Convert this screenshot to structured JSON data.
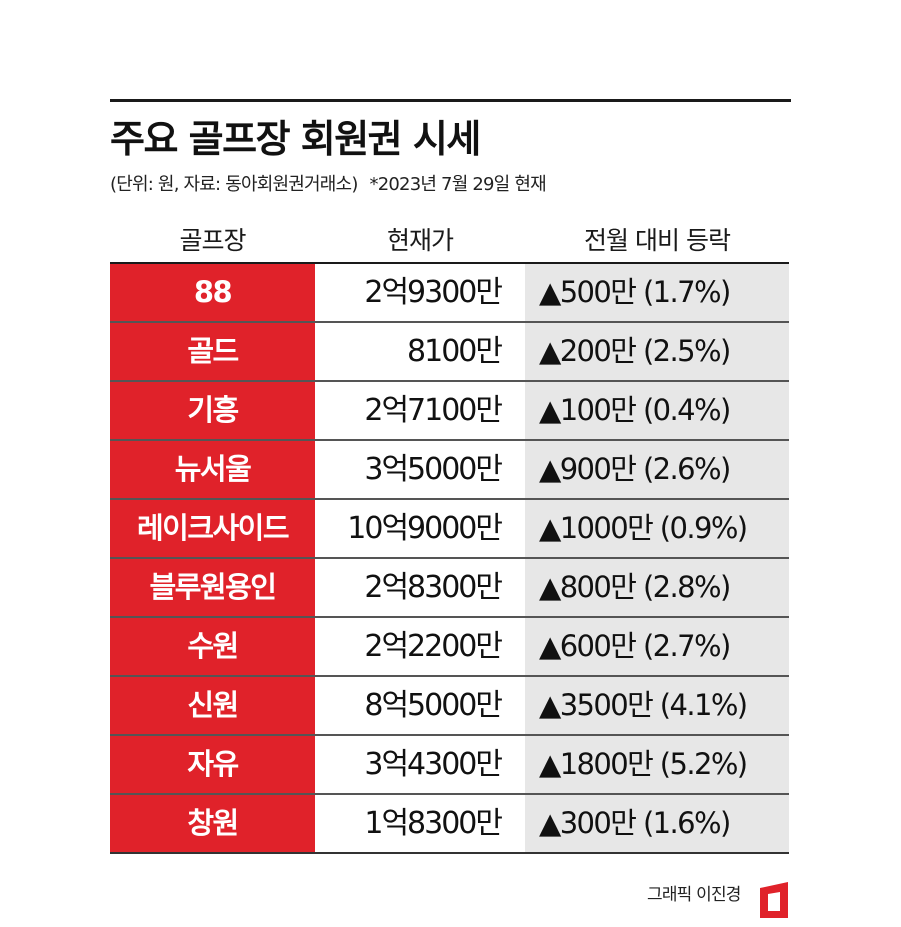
{
  "title": "주요 골프장 회원권 시세",
  "subtitle": {
    "unit_source": "(단위: 원, 자료: 동아회원권거래소)",
    "date_note": "*2023년 7월 29일 현재"
  },
  "table": {
    "headers": [
      "골프장",
      "현재가",
      "전월 대비 등락"
    ],
    "rows": [
      {
        "name": "88",
        "price": "2억9300만",
        "change": "▲500만 (1.7%)"
      },
      {
        "name": "골드",
        "price": "8100만",
        "change": "▲200만 (2.5%)"
      },
      {
        "name": "기흥",
        "price": "2억7100만",
        "change": "▲100만 (0.4%)"
      },
      {
        "name": "뉴서울",
        "price": "3억5000만",
        "change": "▲900만 (2.6%)"
      },
      {
        "name": "레이크사이드",
        "price": "10억9000만",
        "change": "▲1000만 (0.9%)"
      },
      {
        "name": "블루원용인",
        "price": "2억8300만",
        "change": "▲800만 (2.8%)"
      },
      {
        "name": "수원",
        "price": "2억2200만",
        "change": "▲600만 (2.7%)"
      },
      {
        "name": "신원",
        "price": "8억5000만",
        "change": "▲3500만 (4.1%)"
      },
      {
        "name": "자유",
        "price": "3억4300만",
        "change": "▲1800만 (5.2%)"
      },
      {
        "name": "창원",
        "price": "1억8300만",
        "change": "▲300만 (1.6%)"
      }
    ]
  },
  "credit": "그래픽 이진경",
  "colors": {
    "accent_red": "#e0222a",
    "change_bg": "#e7e7e7"
  },
  "logo": {
    "icon": "publisher-logo-icon"
  }
}
